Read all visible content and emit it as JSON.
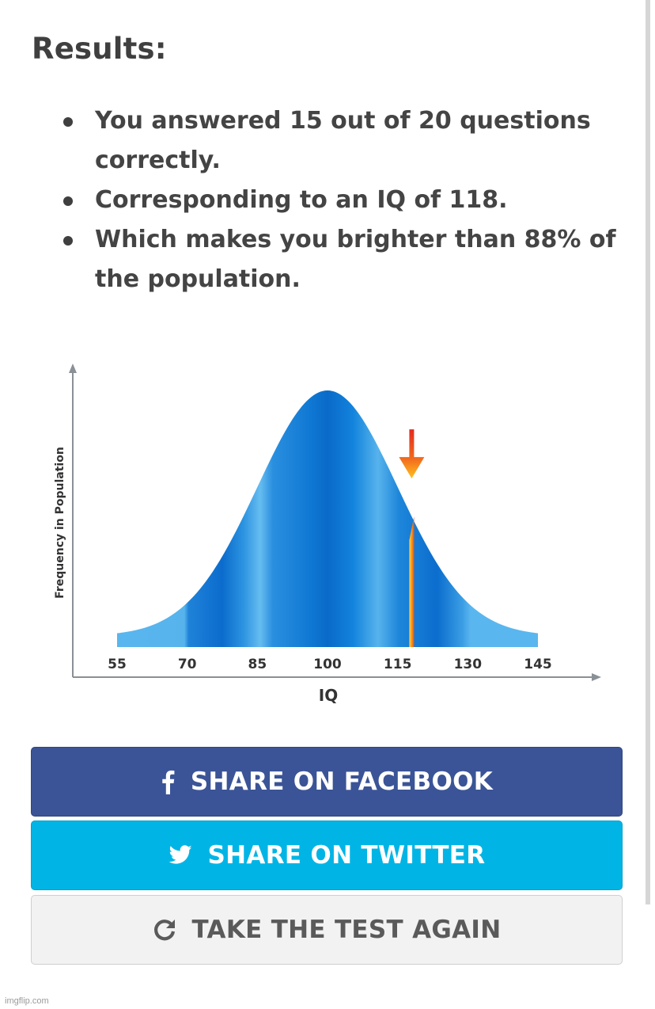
{
  "results": {
    "heading": "Results:",
    "items": [
      "You answered 15 out of 20 questions correctly.",
      "Corresponding to an IQ of 118.",
      "Which makes you brighter than 88% of the population."
    ]
  },
  "chart_data": {
    "type": "area",
    "xlabel": "IQ",
    "ylabel": "Frequency in Population",
    "x_ticks": [
      55,
      70,
      85,
      100,
      115,
      130,
      145
    ],
    "xlim": [
      55,
      145
    ],
    "distribution": {
      "mean": 100,
      "sd": 15
    },
    "marker": {
      "x": 118
    },
    "colors": {
      "curve": "#1a7fd6",
      "light": "#5ab6ee",
      "marker": "#f7a11a",
      "marker_arrow": "#e8341c"
    }
  },
  "buttons": {
    "facebook": {
      "label": "SHARE ON FACEBOOK",
      "icon": "facebook-icon",
      "color": "#3b5497"
    },
    "twitter": {
      "label": "SHARE ON TWITTER",
      "icon": "twitter-bird-icon",
      "color": "#00b5e5"
    },
    "retake": {
      "label": "TAKE THE TEST AGAIN",
      "icon": "refresh-icon",
      "color": "#f2f2f2"
    }
  },
  "watermark": "imgflip.com"
}
